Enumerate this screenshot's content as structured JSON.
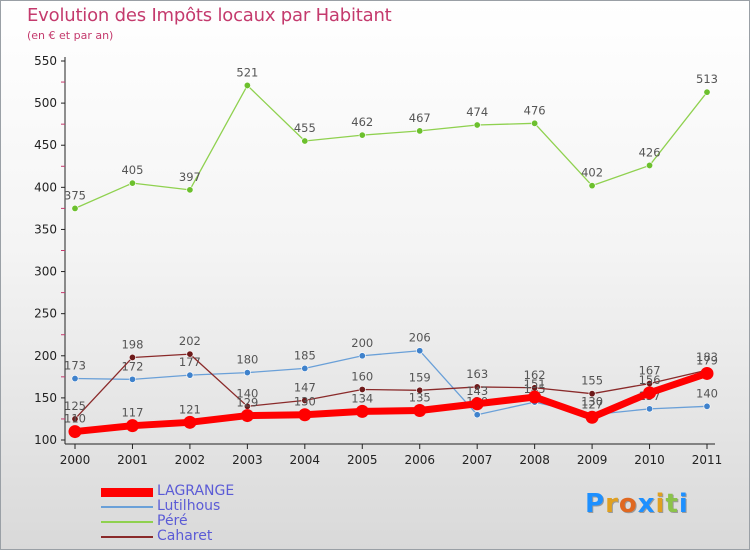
{
  "chart_data": {
    "type": "line",
    "title": "Evolution des Impôts locaux par Habitant",
    "subtitle": "(en € et par an)",
    "xlabel": "",
    "ylabel": "",
    "x": [
      "2000",
      "2001",
      "2002",
      "2003",
      "2004",
      "2005",
      "2006",
      "2007",
      "2008",
      "2009",
      "2010",
      "2011"
    ],
    "ylim": [
      100,
      550
    ],
    "yticks": [
      100,
      150,
      200,
      250,
      300,
      350,
      400,
      450,
      500,
      550
    ],
    "grid": false,
    "series": [
      {
        "name": "Péré",
        "color": "#8fd14f",
        "marker": "#6cc02d",
        "width": 1.3,
        "values": [
          375,
          405,
          397,
          521,
          455,
          462,
          467,
          474,
          476,
          402,
          426,
          513
        ]
      },
      {
        "name": "Lutilhous",
        "color": "#6aa0d8",
        "marker": "#3f82cc",
        "width": 1.3,
        "values": [
          173,
          172,
          177,
          180,
          185,
          200,
          206,
          130,
          145,
          130,
          137,
          140
        ]
      },
      {
        "name": "Caharet",
        "color": "#8a2a2a",
        "marker": "#6e1b1b",
        "width": 1.3,
        "values": [
          125,
          198,
          202,
          140,
          147,
          160,
          159,
          163,
          162,
          155,
          167,
          183
        ]
      },
      {
        "name": "LAGRANGE",
        "color": "#ff0000",
        "marker": "#ff0000",
        "width": 7,
        "values": [
          110,
          117,
          121,
          129,
          130,
          134,
          135,
          143,
          151,
          127,
          156,
          179
        ]
      }
    ],
    "legend_order": [
      "LAGRANGE",
      "Lutilhous",
      "Péré",
      "Caharet"
    ]
  },
  "logo": {
    "letters": [
      "P",
      "r",
      "o",
      "x",
      "i",
      "t",
      "i"
    ],
    "colors": [
      "#1e90ff",
      "#e0a020",
      "#e06820",
      "#1e90ff",
      "#e0a020",
      "#8bc34a",
      "#1e90ff"
    ]
  }
}
